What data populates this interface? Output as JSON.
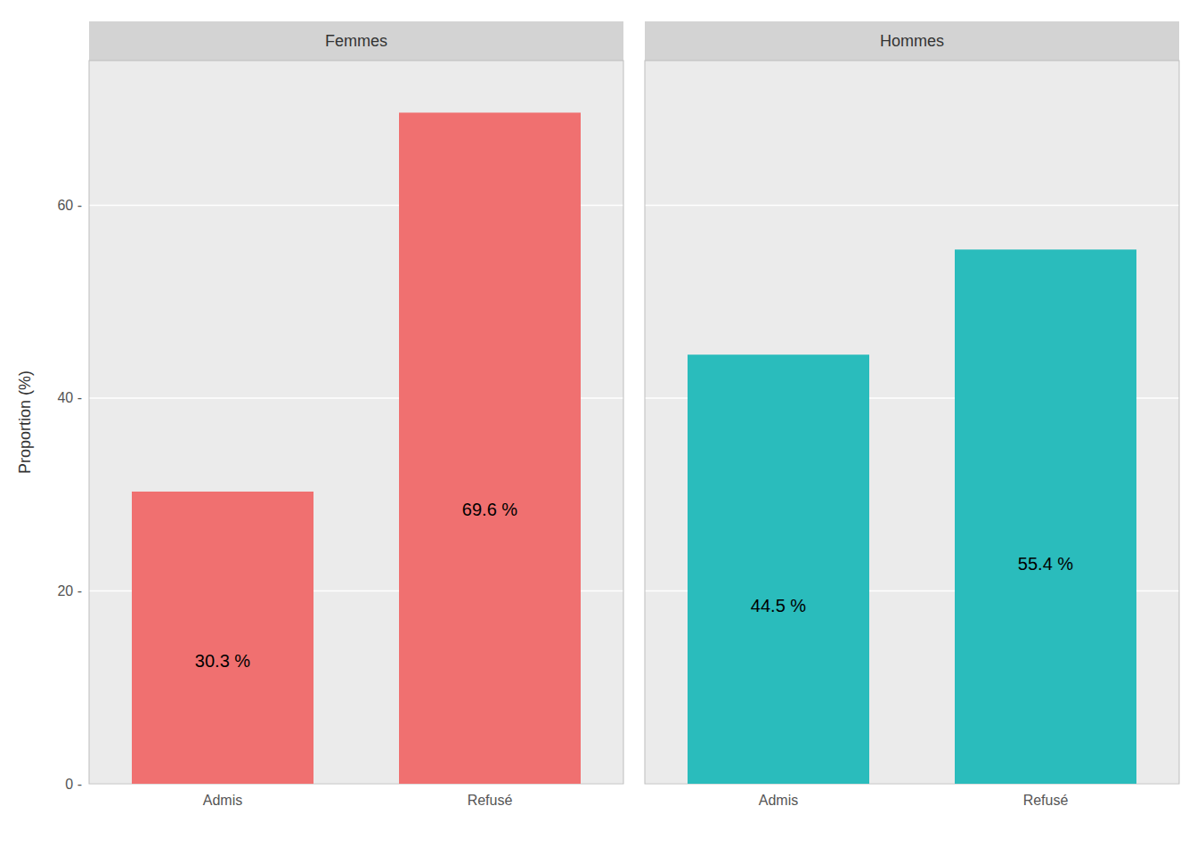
{
  "chart_data": [
    {
      "type": "bar",
      "title": "Femmes",
      "categories": [
        "Admis",
        "Refusé"
      ],
      "values": [
        30.3,
        69.6
      ],
      "value_labels": [
        "30.3 %",
        "69.6 %"
      ],
      "data_labels": true,
      "color": "#F07070",
      "y_label": "Proportion (%)",
      "ylim": [
        0,
        75
      ],
      "yticks": [
        {
          "value": 0,
          "label": "0 -"
        },
        {
          "value": 20,
          "label": "20 -"
        },
        {
          "value": 40,
          "label": "40 -"
        },
        {
          "value": 60,
          "label": "60 -"
        }
      ],
      "grid": true
    },
    {
      "type": "bar",
      "title": "Hommes",
      "categories": [
        "Admis",
        "Refusé"
      ],
      "values": [
        44.5,
        55.4
      ],
      "value_labels": [
        "44.5 %",
        "55.4 %"
      ],
      "data_labels": true,
      "color": "#2ABCBC",
      "ylim": [
        0,
        75
      ],
      "yticks": [
        0,
        20,
        40,
        60
      ],
      "tick_labels": "x",
      "grid": true
    }
  ]
}
